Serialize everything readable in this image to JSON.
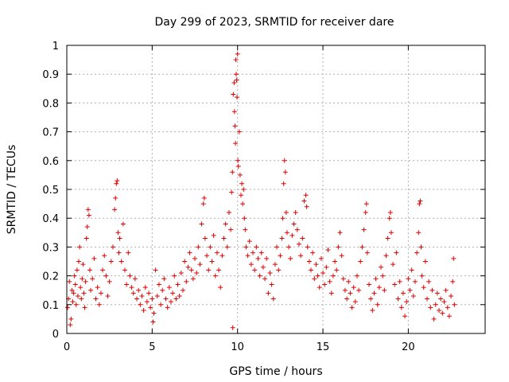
{
  "chart_data": {
    "type": "scatter",
    "title": "Day 299 of 2023, SRMTID for receiver dare",
    "xlabel": "GPS time / hours",
    "ylabel": "SRMTID / TECUs",
    "xlim": [
      0,
      24.5
    ],
    "ylim": [
      0,
      1
    ],
    "xticks": [
      0,
      5,
      10,
      15,
      20
    ],
    "xtick_labels": [
      "0",
      "5",
      "10",
      "15",
      "20"
    ],
    "yticks": [
      0,
      0.1,
      0.2,
      0.3,
      0.4,
      0.5,
      0.6,
      0.7,
      0.8,
      0.9,
      1
    ],
    "ytick_labels": [
      "0",
      "0.1",
      "0.2",
      "0.3",
      "0.4",
      "0.5",
      "0.6",
      "0.7",
      "0.8",
      "0.9",
      "1"
    ],
    "grid": true,
    "marker": "+",
    "marker_color": "#e00000",
    "series": [
      {
        "name": "SRMTID",
        "points": [
          [
            0.05,
            0.09
          ],
          [
            0.1,
            0.12
          ],
          [
            0.15,
            0.18
          ],
          [
            0.2,
            0.03
          ],
          [
            0.25,
            0.05
          ],
          [
            0.3,
            0.15
          ],
          [
            0.35,
            0.11
          ],
          [
            0.4,
            0.14
          ],
          [
            0.45,
            0.2
          ],
          [
            0.5,
            0.17
          ],
          [
            0.55,
            0.1
          ],
          [
            0.6,
            0.22
          ],
          [
            0.65,
            0.13
          ],
          [
            0.7,
            0.25
          ],
          [
            0.75,
            0.3
          ],
          [
            0.8,
            0.16
          ],
          [
            0.85,
            0.12
          ],
          [
            0.9,
            0.19
          ],
          [
            0.95,
            0.24
          ],
          [
            1.0,
            0.14
          ],
          [
            1.05,
            0.09
          ],
          [
            1.1,
            0.18
          ],
          [
            1.15,
            0.33
          ],
          [
            1.2,
            0.37
          ],
          [
            1.25,
            0.43
          ],
          [
            1.3,
            0.41
          ],
          [
            1.35,
            0.22
          ],
          [
            1.4,
            0.15
          ],
          [
            1.5,
            0.19
          ],
          [
            1.6,
            0.26
          ],
          [
            1.7,
            0.12
          ],
          [
            1.8,
            0.16
          ],
          [
            1.9,
            0.1
          ],
          [
            2.0,
            0.14
          ],
          [
            2.1,
            0.22
          ],
          [
            2.2,
            0.27
          ],
          [
            2.3,
            0.2
          ],
          [
            2.4,
            0.13
          ],
          [
            2.5,
            0.18
          ],
          [
            2.6,
            0.25
          ],
          [
            2.7,
            0.3
          ],
          [
            2.8,
            0.43
          ],
          [
            2.85,
            0.47
          ],
          [
            2.9,
            0.52
          ],
          [
            2.95,
            0.53
          ],
          [
            3.0,
            0.35
          ],
          [
            3.05,
            0.28
          ],
          [
            3.1,
            0.33
          ],
          [
            3.2,
            0.25
          ],
          [
            3.3,
            0.38
          ],
          [
            3.4,
            0.22
          ],
          [
            3.5,
            0.17
          ],
          [
            3.6,
            0.28
          ],
          [
            3.7,
            0.2
          ],
          [
            3.8,
            0.16
          ],
          [
            3.9,
            0.14
          ],
          [
            4.0,
            0.19
          ],
          [
            4.1,
            0.12
          ],
          [
            4.2,
            0.15
          ],
          [
            4.3,
            0.1
          ],
          [
            4.4,
            0.13
          ],
          [
            4.5,
            0.08
          ],
          [
            4.6,
            0.16
          ],
          [
            4.7,
            0.11
          ],
          [
            4.8,
            0.14
          ],
          [
            4.9,
            0.09
          ],
          [
            5.0,
            0.12
          ],
          [
            5.05,
            0.04
          ],
          [
            5.1,
            0.07
          ],
          [
            5.2,
            0.22
          ],
          [
            5.3,
            0.13
          ],
          [
            5.4,
            0.17
          ],
          [
            5.5,
            0.1
          ],
          [
            5.6,
            0.15
          ],
          [
            5.7,
            0.19
          ],
          [
            5.8,
            0.12
          ],
          [
            5.9,
            0.09
          ],
          [
            6.0,
            0.16
          ],
          [
            6.1,
            0.11
          ],
          [
            6.2,
            0.14
          ],
          [
            6.3,
            0.2
          ],
          [
            6.4,
            0.12
          ],
          [
            6.5,
            0.17
          ],
          [
            6.6,
            0.13
          ],
          [
            6.7,
            0.21
          ],
          [
            6.8,
            0.15
          ],
          [
            6.9,
            0.25
          ],
          [
            7.0,
            0.18
          ],
          [
            7.1,
            0.23
          ],
          [
            7.2,
            0.28
          ],
          [
            7.3,
            0.22
          ],
          [
            7.4,
            0.19
          ],
          [
            7.5,
            0.26
          ],
          [
            7.6,
            0.21
          ],
          [
            7.7,
            0.3
          ],
          [
            7.8,
            0.24
          ],
          [
            7.9,
            0.38
          ],
          [
            8.0,
            0.45
          ],
          [
            8.05,
            0.47
          ],
          [
            8.1,
            0.33
          ],
          [
            8.2,
            0.27
          ],
          [
            8.3,
            0.22
          ],
          [
            8.4,
            0.3
          ],
          [
            8.5,
            0.25
          ],
          [
            8.6,
            0.34
          ],
          [
            8.7,
            0.2
          ],
          [
            8.8,
            0.28
          ],
          [
            8.9,
            0.22
          ],
          [
            9.0,
            0.16
          ],
          [
            9.1,
            0.27
          ],
          [
            9.2,
            0.33
          ],
          [
            9.3,
            0.38
          ],
          [
            9.4,
            0.3
          ],
          [
            9.5,
            0.42
          ],
          [
            9.6,
            0.36
          ],
          [
            9.65,
            0.49
          ],
          [
            9.7,
            0.56
          ],
          [
            9.72,
            0.02
          ],
          [
            9.75,
            0.83
          ],
          [
            9.8,
            0.87
          ],
          [
            9.82,
            0.77
          ],
          [
            9.85,
            0.72
          ],
          [
            9.88,
            0.66
          ],
          [
            9.9,
            0.95
          ],
          [
            9.92,
            0.9
          ],
          [
            9.95,
            0.88
          ],
          [
            9.97,
            0.82
          ],
          [
            10.0,
            0.97
          ],
          [
            10.02,
            0.6
          ],
          [
            10.05,
            0.58
          ],
          [
            10.1,
            0.7
          ],
          [
            10.15,
            0.55
          ],
          [
            10.2,
            0.48
          ],
          [
            10.25,
            0.52
          ],
          [
            10.3,
            0.45
          ],
          [
            10.35,
            0.5
          ],
          [
            10.4,
            0.4
          ],
          [
            10.45,
            0.36
          ],
          [
            10.5,
            0.3
          ],
          [
            10.6,
            0.27
          ],
          [
            10.7,
            0.32
          ],
          [
            10.8,
            0.24
          ],
          [
            10.9,
            0.28
          ],
          [
            11.0,
            0.22
          ],
          [
            11.1,
            0.3
          ],
          [
            11.2,
            0.26
          ],
          [
            11.3,
            0.2
          ],
          [
            11.4,
            0.28
          ],
          [
            11.5,
            0.23
          ],
          [
            11.6,
            0.19
          ],
          [
            11.7,
            0.26
          ],
          [
            11.8,
            0.14
          ],
          [
            11.9,
            0.21
          ],
          [
            12.0,
            0.17
          ],
          [
            12.1,
            0.12
          ],
          [
            12.2,
            0.24
          ],
          [
            12.3,
            0.3
          ],
          [
            12.4,
            0.22
          ],
          [
            12.5,
            0.27
          ],
          [
            12.6,
            0.33
          ],
          [
            12.65,
            0.4
          ],
          [
            12.7,
            0.52
          ],
          [
            12.75,
            0.6
          ],
          [
            12.8,
            0.56
          ],
          [
            12.85,
            0.42
          ],
          [
            12.9,
            0.35
          ],
          [
            13.0,
            0.3
          ],
          [
            13.1,
            0.26
          ],
          [
            13.2,
            0.34
          ],
          [
            13.3,
            0.38
          ],
          [
            13.4,
            0.42
          ],
          [
            13.5,
            0.36
          ],
          [
            13.6,
            0.31
          ],
          [
            13.7,
            0.27
          ],
          [
            13.8,
            0.33
          ],
          [
            13.9,
            0.46
          ],
          [
            14.0,
            0.48
          ],
          [
            14.05,
            0.44
          ],
          [
            14.1,
            0.3
          ],
          [
            14.2,
            0.25
          ],
          [
            14.3,
            0.22
          ],
          [
            14.4,
            0.28
          ],
          [
            14.5,
            0.19
          ],
          [
            14.6,
            0.24
          ],
          [
            14.7,
            0.2
          ],
          [
            14.8,
            0.16
          ],
          [
            14.9,
            0.26
          ],
          [
            15.0,
            0.21
          ],
          [
            15.1,
            0.17
          ],
          [
            15.2,
            0.23
          ],
          [
            15.3,
            0.29
          ],
          [
            15.4,
            0.18
          ],
          [
            15.5,
            0.14
          ],
          [
            15.6,
            0.2
          ],
          [
            15.7,
            0.25
          ],
          [
            15.8,
            0.22
          ],
          [
            15.9,
            0.3
          ],
          [
            16.0,
            0.35
          ],
          [
            16.1,
            0.27
          ],
          [
            16.2,
            0.19
          ],
          [
            16.3,
            0.15
          ],
          [
            16.4,
            0.12
          ],
          [
            16.5,
            0.18
          ],
          [
            16.6,
            0.14
          ],
          [
            16.7,
            0.09
          ],
          [
            16.8,
            0.16
          ],
          [
            16.9,
            0.11
          ],
          [
            17.0,
            0.2
          ],
          [
            17.1,
            0.15
          ],
          [
            17.2,
            0.25
          ],
          [
            17.3,
            0.3
          ],
          [
            17.4,
            0.36
          ],
          [
            17.5,
            0.42
          ],
          [
            17.55,
            0.45
          ],
          [
            17.6,
            0.28
          ],
          [
            17.7,
            0.17
          ],
          [
            17.8,
            0.12
          ],
          [
            17.9,
            0.08
          ],
          [
            18.0,
            0.14
          ],
          [
            18.1,
            0.19
          ],
          [
            18.2,
            0.1
          ],
          [
            18.3,
            0.16
          ],
          [
            18.4,
            0.23
          ],
          [
            18.5,
            0.2
          ],
          [
            18.6,
            0.15
          ],
          [
            18.7,
            0.27
          ],
          [
            18.8,
            0.33
          ],
          [
            18.9,
            0.4
          ],
          [
            18.95,
            0.42
          ],
          [
            19.0,
            0.35
          ],
          [
            19.1,
            0.24
          ],
          [
            19.2,
            0.17
          ],
          [
            19.3,
            0.28
          ],
          [
            19.4,
            0.12
          ],
          [
            19.5,
            0.18
          ],
          [
            19.6,
            0.09
          ],
          [
            19.7,
            0.14
          ],
          [
            19.8,
            0.06
          ],
          [
            19.9,
            0.11
          ],
          [
            20.0,
            0.19
          ],
          [
            20.1,
            0.15
          ],
          [
            20.2,
            0.22
          ],
          [
            20.3,
            0.13
          ],
          [
            20.4,
            0.18
          ],
          [
            20.5,
            0.28
          ],
          [
            20.6,
            0.35
          ],
          [
            20.65,
            0.45
          ],
          [
            20.7,
            0.46
          ],
          [
            20.75,
            0.3
          ],
          [
            20.8,
            0.2
          ],
          [
            20.9,
            0.16
          ],
          [
            21.0,
            0.25
          ],
          [
            21.1,
            0.12
          ],
          [
            21.2,
            0.18
          ],
          [
            21.3,
            0.09
          ],
          [
            21.4,
            0.15
          ],
          [
            21.5,
            0.05
          ],
          [
            21.6,
            0.1
          ],
          [
            21.7,
            0.14
          ],
          [
            21.8,
            0.08
          ],
          [
            21.9,
            0.12
          ],
          [
            22.0,
            0.07
          ],
          [
            22.1,
            0.11
          ],
          [
            22.2,
            0.15
          ],
          [
            22.3,
            0.09
          ],
          [
            22.4,
            0.06
          ],
          [
            22.5,
            0.13
          ],
          [
            22.6,
            0.18
          ],
          [
            22.65,
            0.26
          ],
          [
            22.7,
            0.1
          ]
        ]
      }
    ]
  }
}
